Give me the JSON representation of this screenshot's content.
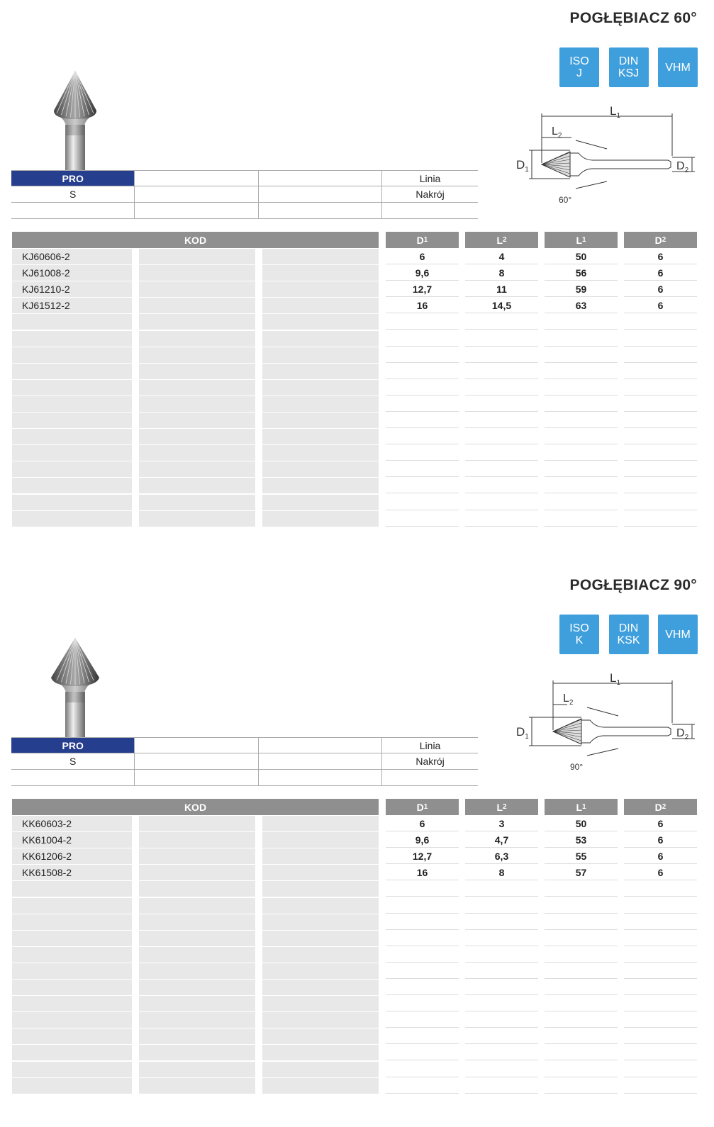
{
  "sections": [
    {
      "title": "POGŁĘBIACZ 60°",
      "badges": [
        "ISO\nJ",
        "DIN\nKSJ",
        "VHM"
      ],
      "angle": "60°",
      "info": [
        [
          "PRO",
          "",
          "",
          "Linia"
        ],
        [
          "S",
          "",
          "",
          "Nakrój"
        ],
        [
          "",
          "",
          "",
          ""
        ]
      ],
      "table": {
        "kod_header": "KOD",
        "columns": [
          {
            "label": "D",
            "sub": "1"
          },
          {
            "label": "L",
            "sub": "2"
          },
          {
            "label": "L",
            "sub": "1"
          },
          {
            "label": "D",
            "sub": "2"
          }
        ],
        "rows": [
          [
            "KJ60606-2",
            "6",
            "4",
            "50",
            "6"
          ],
          [
            "KJ61008-2",
            "9,6",
            "8",
            "56",
            "6"
          ],
          [
            "KJ61210-2",
            "12,7",
            "11",
            "59",
            "6"
          ],
          [
            "KJ61512-2",
            "16",
            "14,5",
            "63",
            "6"
          ]
        ]
      }
    },
    {
      "title": "POGŁĘBIACZ 90°",
      "badges": [
        "ISO\nK",
        "DIN\nKSK",
        "VHM"
      ],
      "angle": "90°",
      "info": [
        [
          "PRO",
          "",
          "",
          "Linia"
        ],
        [
          "S",
          "",
          "",
          "Nakrój"
        ],
        [
          "",
          "",
          "",
          ""
        ]
      ],
      "table": {
        "kod_header": "KOD",
        "columns": [
          {
            "label": "D",
            "sub": "1"
          },
          {
            "label": "L",
            "sub": "2"
          },
          {
            "label": "L",
            "sub": "1"
          },
          {
            "label": "D",
            "sub": "2"
          }
        ],
        "rows": [
          [
            "KK60603-2",
            "6",
            "3",
            "50",
            "6"
          ],
          [
            "KK61004-2",
            "9,6",
            "4,7",
            "53",
            "6"
          ],
          [
            "KK61206-2",
            "12,7",
            "6,3",
            "55",
            "6"
          ],
          [
            "KK61508-2",
            "16",
            "8",
            "57",
            "6"
          ]
        ]
      }
    }
  ],
  "colors": {
    "badge": "#3f9fdc",
    "pro": "#263e8e",
    "header": "#8f8f8f"
  },
  "diagram_labels": {
    "L1": "L",
    "L2": "L",
    "D1": "D",
    "D2": "D"
  }
}
